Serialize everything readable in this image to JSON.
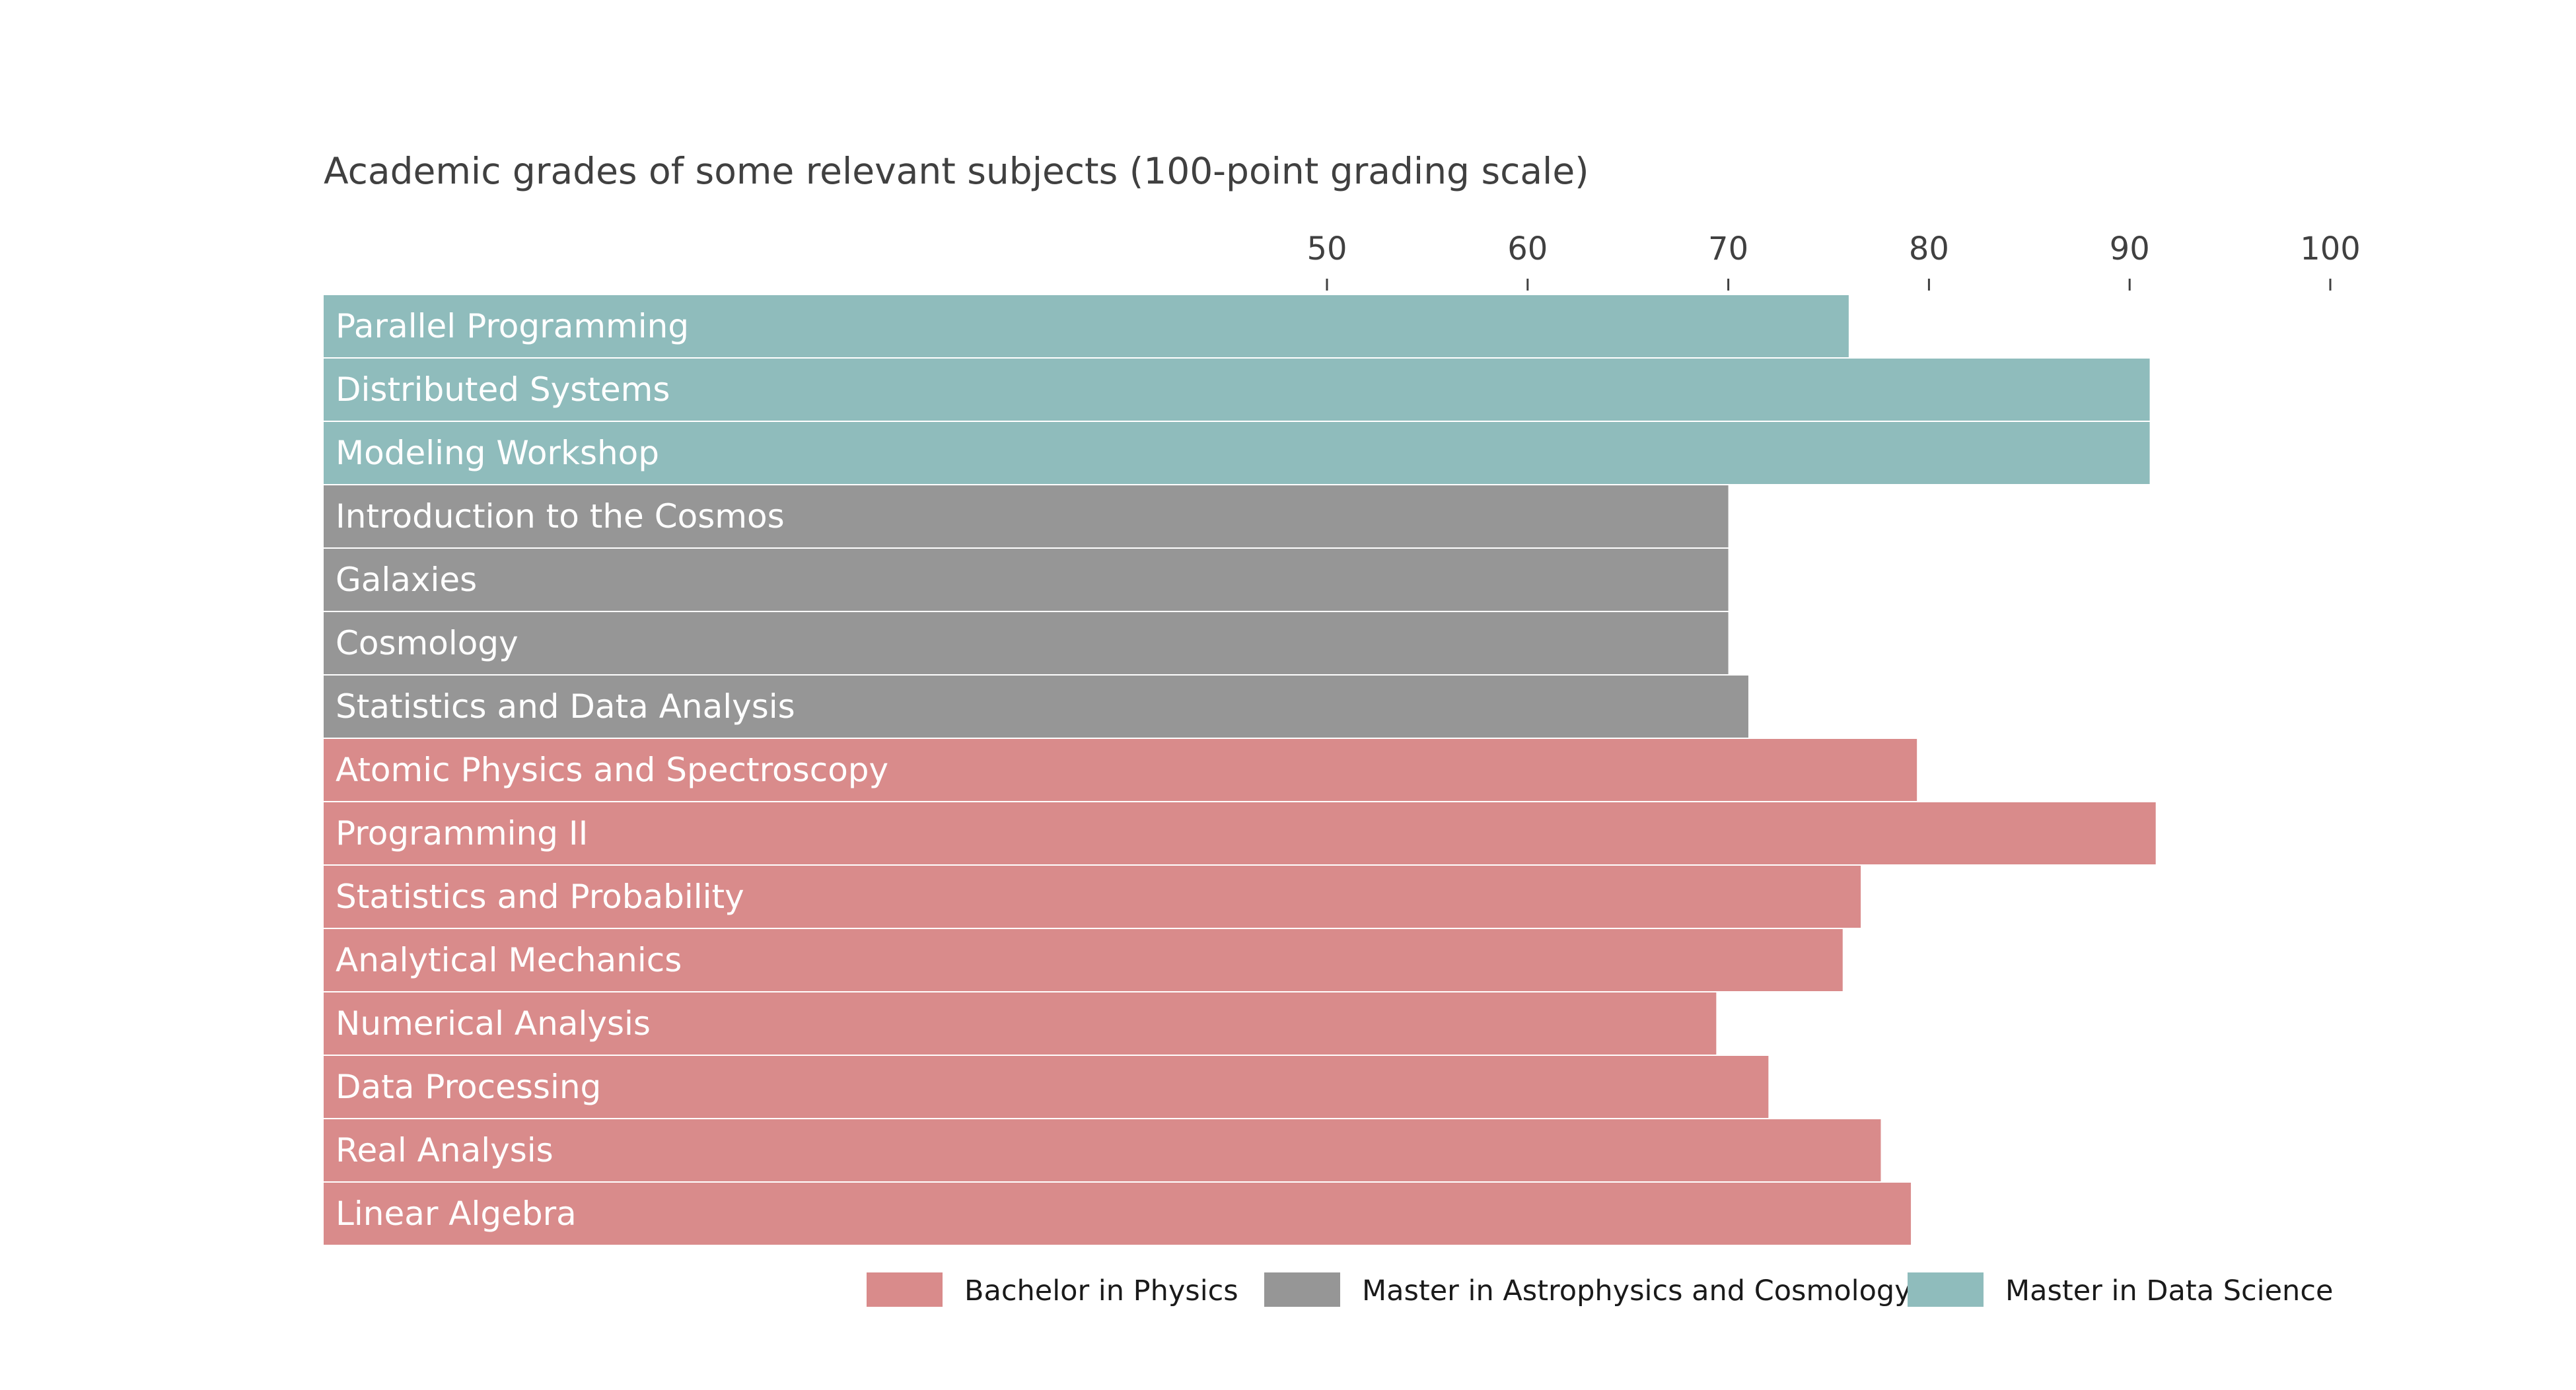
{
  "chart_data": {
    "type": "bar",
    "orientation": "horizontal",
    "title": "Academic grades of some relevant subjects (100-point grading scale)",
    "xlabel": "",
    "ylabel": "",
    "xlim": [
      0,
      100
    ],
    "x_ticks": [
      50,
      60,
      70,
      80,
      90,
      100
    ],
    "x_tick_position": "top",
    "grid": false,
    "legend_position": "bottom",
    "categories": [
      "Parallel Programming",
      "Distributed Systems",
      "Modeling Workshop",
      "Introduction to the Cosmos",
      "Galaxies",
      "Cosmology",
      "Statistics and Data Analysis",
      "Atomic Physics and Spectroscopy",
      "Programming II",
      "Statistics and Probability",
      "Analytical Mechanics",
      "Numerical Analysis",
      "Data Processing",
      "Real Analysis",
      "Linear Algebra"
    ],
    "values": [
      76,
      91,
      91,
      70,
      70,
      70,
      71,
      79.4,
      91.3,
      76.6,
      75.7,
      69.4,
      72,
      77.6,
      79.1
    ],
    "groups": [
      "Master in Data Science",
      "Master in Data Science",
      "Master in Data Science",
      "Master in Astrophysics and Cosmology",
      "Master in Astrophysics and Cosmology",
      "Master in Astrophysics and Cosmology",
      "Master in Astrophysics and Cosmology",
      "Bachelor in Physics",
      "Bachelor in Physics",
      "Bachelor in Physics",
      "Bachelor in Physics",
      "Bachelor in Physics",
      "Bachelor in Physics",
      "Bachelor in Physics",
      "Bachelor in Physics"
    ],
    "legend": [
      {
        "name": "Bachelor in Physics",
        "color": "#d98b8b"
      },
      {
        "name": "Master in Astrophysics and Cosmology",
        "color": "#969696"
      },
      {
        "name": "Master in Data Science",
        "color": "#8fbcbc"
      }
    ]
  }
}
